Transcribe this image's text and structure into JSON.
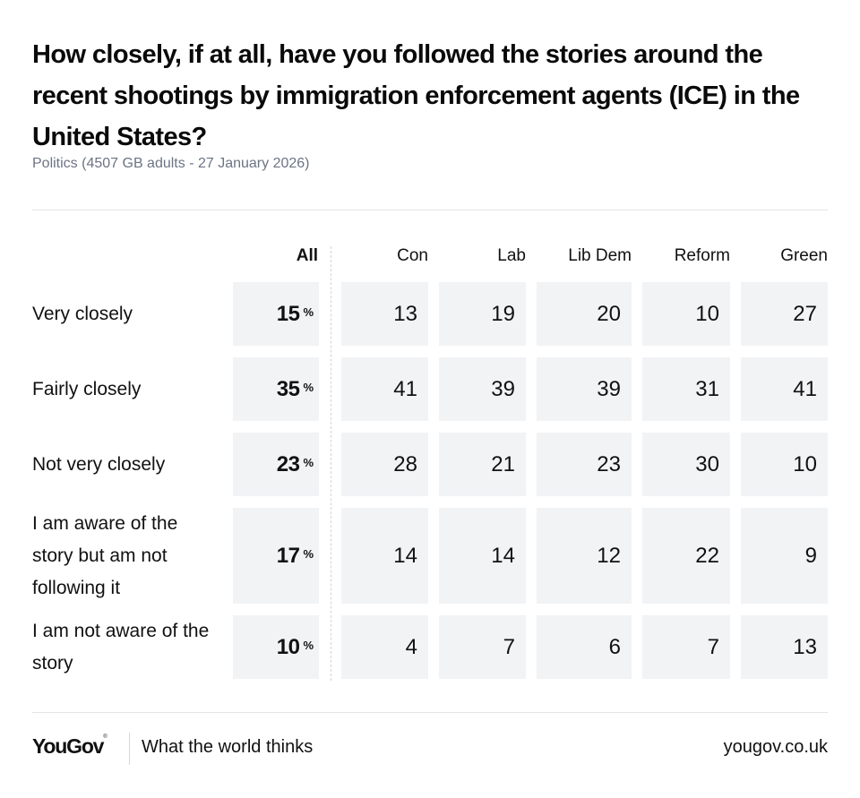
{
  "header": {
    "title": "How closely, if at all, have you followed the stories around the recent shootings by immigration enforcement agents (ICE) in the United States?",
    "subtitle": "Politics (4507 GB adults - 27 January 2026)"
  },
  "footer": {
    "logo": "YouGov",
    "logo_mark": "®",
    "tagline": "What the world thinks",
    "site": "yougov.co.uk"
  },
  "chart_data": {
    "type": "table",
    "title": "How closely, if at all, have you followed the stories around the recent shootings by immigration enforcement agents (ICE) in the United States?",
    "subtitle": "Politics (4507 GB adults - 27 January 2026)",
    "unit": "%",
    "columns": [
      "All",
      "Con",
      "Lab",
      "Lib Dem",
      "Reform",
      "Green"
    ],
    "rows": [
      {
        "label": "Very closely",
        "values": [
          15,
          13,
          19,
          20,
          10,
          27
        ]
      },
      {
        "label": "Fairly closely",
        "values": [
          35,
          41,
          39,
          39,
          31,
          41
        ]
      },
      {
        "label": "Not very closely",
        "values": [
          23,
          28,
          21,
          23,
          30,
          10
        ]
      },
      {
        "label": "I am aware of the story but am not following it",
        "values": [
          17,
          14,
          14,
          12,
          22,
          9
        ]
      },
      {
        "label": "I am not aware of the story",
        "values": [
          10,
          4,
          7,
          6,
          7,
          13
        ]
      }
    ],
    "colors": {
      "cell_background": "#f2f3f5",
      "subtitle": "#6b7485"
    }
  }
}
